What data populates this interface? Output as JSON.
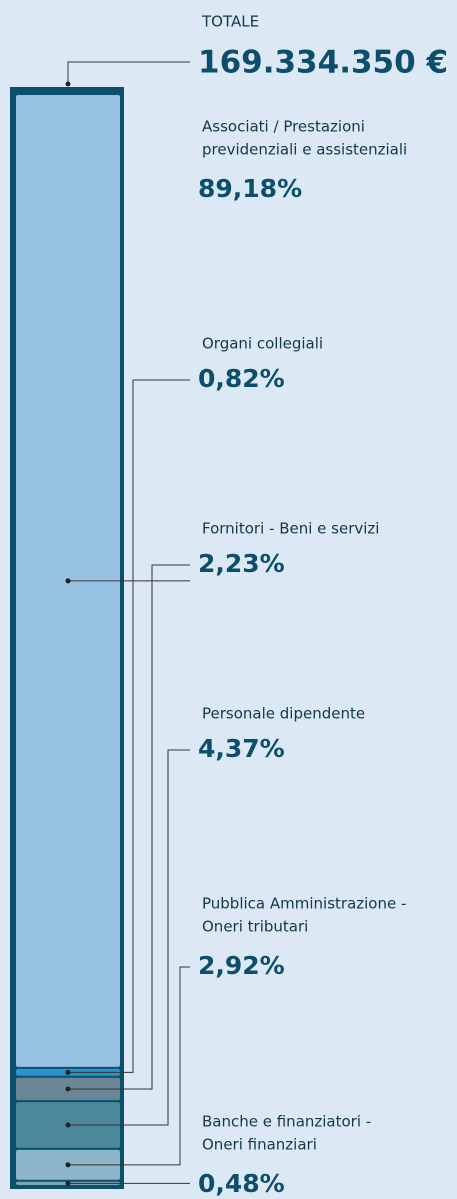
{
  "chart_data": {
    "type": "stacked-bar",
    "total_title": "TOTALE",
    "total": "169.334.350 €",
    "categories": [
      [
        "Associati / Prestazioni",
        "previdenziali e assistenziali"
      ],
      [
        "Organi collegiali"
      ],
      [
        "Fornitori - Beni e servizi"
      ],
      [
        "Personale dipendente"
      ],
      [
        "Pubblica Amministrazione -",
        "Oneri tributari"
      ],
      [
        "Banche e finanziatori -",
        "Oneri finanziari"
      ]
    ],
    "values": [
      89.18,
      0.82,
      2.23,
      4.37,
      2.92,
      0.48
    ],
    "value_labels": [
      "89,18%",
      "0,82%",
      "2,23%",
      "4,37%",
      "2,92%",
      "0,48%"
    ],
    "colors": [
      "#97c1e1",
      "#2a93c9",
      "#6a8593",
      "#4b899a",
      "#8db5c9",
      "#7ea3b6"
    ],
    "ylim": [
      0,
      100
    ]
  }
}
